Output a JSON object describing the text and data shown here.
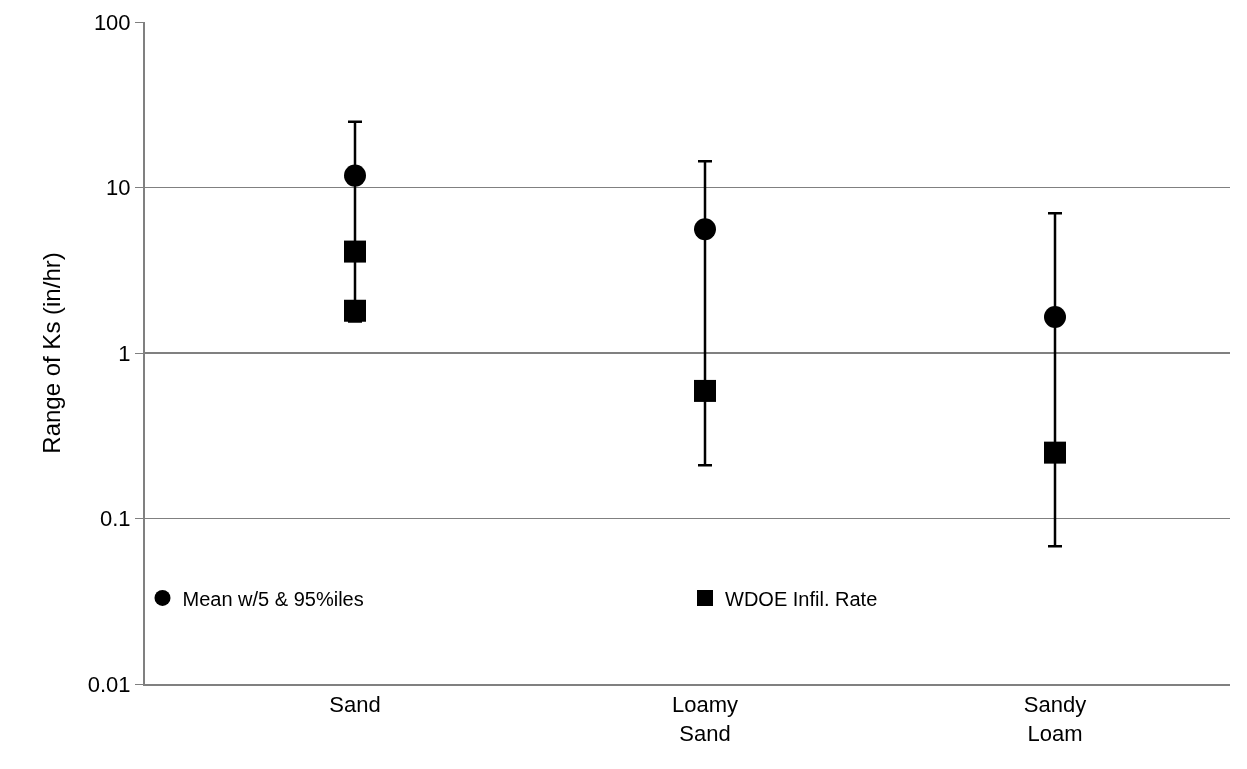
{
  "chart_data": {
    "type": "scatter",
    "ylabel": "Range of Ks (in/hr)",
    "categories": [
      "Sand",
      "Loamy Sand",
      "Sandy Loam"
    ],
    "series": [
      {
        "name": "Mean w/5 & 95%iles",
        "color": "#000000",
        "marker": "circle",
        "values": [
          11.8,
          5.6,
          1.65
        ],
        "errors": [
          [
            1.55,
            25
          ],
          [
            0.21,
            14.4
          ],
          [
            0.068,
            7
          ]
        ]
      },
      {
        "name": "WDOE Infil. Rate",
        "color": "#000000",
        "marker": "square",
        "x": [
          "Sand",
          "Sand",
          "Loamy Sand",
          "Sandy Loam"
        ],
        "values": [
          4.1,
          1.8,
          0.59,
          0.25
        ]
      }
    ],
    "log": "y",
    "ylim": [
      0.01,
      100
    ],
    "yticks": [
      0.01,
      0.1,
      1,
      10,
      100
    ],
    "grid": "y",
    "legend": "bottom"
  }
}
